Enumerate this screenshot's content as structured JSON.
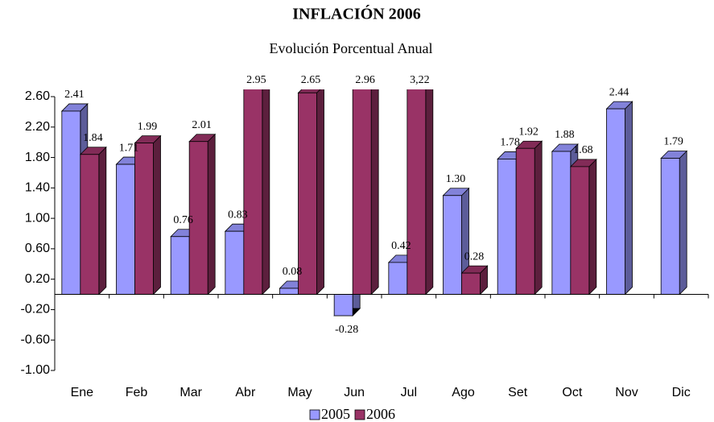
{
  "chart_data": {
    "type": "bar3d",
    "title": "INFLACIÓN 2006",
    "subtitle": "Evolución Porcentual Anual",
    "categories": [
      "Ene",
      "Feb",
      "Mar",
      "Abr",
      "May",
      "Jun",
      "Jul",
      "Ago",
      "Set",
      "Oct",
      "Nov",
      "Dic"
    ],
    "series": [
      {
        "name": "2005",
        "color": "#9999ff",
        "values": [
          2.41,
          1.71,
          0.76,
          0.83,
          0.08,
          -0.28,
          0.42,
          1.3,
          1.78,
          1.88,
          2.44,
          1.79
        ],
        "value_labels": [
          "2.41",
          "1.71",
          "0.76",
          "0.83",
          "0.08",
          "-0.28",
          "0.42",
          "1.30",
          "1.78",
          "1.88",
          "2.44",
          "1.79"
        ]
      },
      {
        "name": "2006",
        "color": "#993366",
        "values": [
          1.84,
          1.99,
          2.01,
          2.95,
          2.65,
          2.96,
          3.22,
          0.28,
          1.92,
          1.68,
          null,
          null
        ],
        "value_labels": [
          "1.84",
          "1.99",
          "2.01",
          "2.95",
          "2.65",
          "2.96",
          "3,22",
          "0.28",
          "1.92",
          "1.68",
          null,
          null
        ]
      }
    ],
    "ylim": [
      -1.0,
      2.6
    ],
    "yticks": [
      {
        "value": 2.6,
        "label": "2.60"
      },
      {
        "value": 2.2,
        "label": "2.20"
      },
      {
        "value": 1.8,
        "label": "1.80"
      },
      {
        "value": 1.4,
        "label": "1.40"
      },
      {
        "value": 1.0,
        "label": "1.00"
      },
      {
        "value": 0.6,
        "label": "0.60"
      },
      {
        "value": 0.2,
        "label": "0.20"
      },
      {
        "value": -0.2,
        "label": "-0.20"
      },
      {
        "value": -0.6,
        "label": "-0.60"
      },
      {
        "value": -1.0,
        "label": "-1.00"
      }
    ],
    "grid": false,
    "legend": "bottom"
  }
}
